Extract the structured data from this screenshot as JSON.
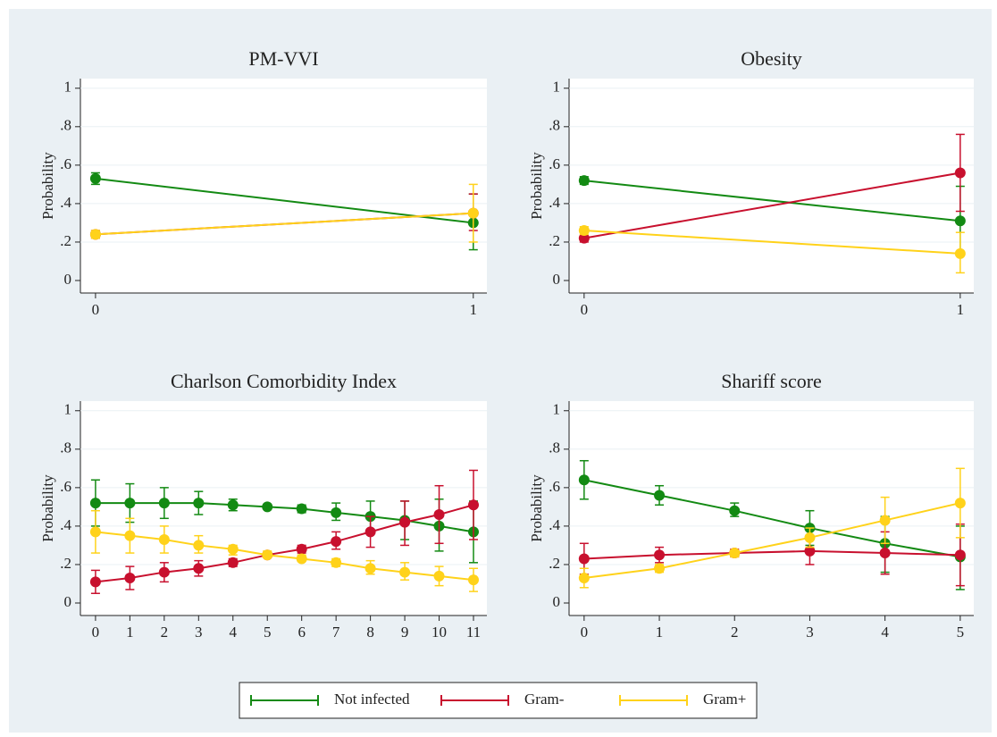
{
  "chart_data": [
    {
      "type": "line",
      "title": "PM-VVI",
      "ylabel": "Probability",
      "x": [
        0,
        1
      ],
      "xlim": [
        -0.04,
        1.036
      ],
      "xticks": [
        0,
        1
      ],
      "ylim": [
        -0.065,
        1.05
      ],
      "yticks": [
        0,
        {
          "value": 0.2,
          "label": ".2"
        },
        {
          "value": 0.4,
          "label": ".4"
        },
        {
          "value": 0.6,
          "label": ".6"
        },
        {
          "value": 0.8,
          "label": ".8"
        },
        1
      ],
      "series": [
        {
          "values": [
            0.53,
            0.3
          ],
          "lower": [
            0.5,
            0.16
          ],
          "upper": [
            0.56,
            0.45
          ]
        },
        {
          "values": [
            0.24,
            0.35
          ],
          "lower": [
            0.22,
            0.26
          ],
          "upper": [
            0.26,
            0.45
          ]
        },
        {
          "values": [
            0.24,
            0.35
          ],
          "lower": [
            0.22,
            0.2
          ],
          "upper": [
            0.26,
            0.5
          ]
        }
      ]
    },
    {
      "type": "line",
      "title": "Obesity",
      "ylabel": "Probability",
      "x": [
        0,
        1
      ],
      "xlim": [
        -0.04,
        1.036
      ],
      "xticks": [
        0,
        1
      ],
      "ylim": [
        -0.065,
        1.05
      ],
      "yticks": [
        0,
        {
          "value": 0.2,
          "label": ".2"
        },
        {
          "value": 0.4,
          "label": ".4"
        },
        {
          "value": 0.6,
          "label": ".6"
        },
        {
          "value": 0.8,
          "label": ".8"
        },
        1
      ],
      "series": [
        {
          "values": [
            0.52,
            0.31
          ],
          "lower": [
            0.5,
            0.13
          ],
          "upper": [
            0.54,
            0.49
          ]
        },
        {
          "values": [
            0.22,
            0.56
          ],
          "lower": [
            0.2,
            0.36
          ],
          "upper": [
            0.25,
            0.76
          ]
        },
        {
          "values": [
            0.26,
            0.14
          ],
          "lower": [
            0.24,
            0.04
          ],
          "upper": [
            0.28,
            0.25
          ]
        }
      ]
    },
    {
      "type": "line",
      "title": "Charlson Comorbidity Index",
      "ylabel": "Probability",
      "x": [
        0,
        1,
        2,
        3,
        4,
        5,
        6,
        7,
        8,
        9,
        10,
        11
      ],
      "xlim": [
        -0.44,
        11.39
      ],
      "xticks": [
        0,
        1,
        2,
        3,
        4,
        5,
        6,
        7,
        8,
        9,
        10,
        11
      ],
      "ylim": [
        -0.065,
        1.05
      ],
      "yticks": [
        0,
        {
          "value": 0.2,
          "label": ".2"
        },
        {
          "value": 0.4,
          "label": ".4"
        },
        {
          "value": 0.6,
          "label": ".6"
        },
        {
          "value": 0.8,
          "label": ".8"
        },
        1
      ],
      "series": [
        {
          "values": [
            0.52,
            0.52,
            0.52,
            0.52,
            0.51,
            0.5,
            0.49,
            0.47,
            0.45,
            0.43,
            0.4,
            0.37
          ],
          "lower": [
            0.4,
            0.42,
            0.44,
            0.46,
            0.48,
            0.49,
            0.47,
            0.43,
            0.38,
            0.33,
            0.27,
            0.21
          ],
          "upper": [
            0.64,
            0.62,
            0.6,
            0.58,
            0.54,
            0.51,
            0.51,
            0.52,
            0.53,
            0.53,
            0.54,
            0.53
          ]
        },
        {
          "values": [
            0.11,
            0.13,
            0.16,
            0.18,
            0.21,
            0.25,
            0.28,
            0.32,
            0.37,
            0.42,
            0.46,
            0.51
          ],
          "lower": [
            0.05,
            0.07,
            0.11,
            0.14,
            0.19,
            0.24,
            0.26,
            0.28,
            0.29,
            0.3,
            0.31,
            0.33
          ],
          "upper": [
            0.17,
            0.19,
            0.21,
            0.22,
            0.23,
            0.26,
            0.3,
            0.37,
            0.45,
            0.53,
            0.61,
            0.69
          ]
        },
        {
          "values": [
            0.37,
            0.35,
            0.33,
            0.3,
            0.28,
            0.25,
            0.23,
            0.21,
            0.18,
            0.16,
            0.14,
            0.12
          ],
          "lower": [
            0.26,
            0.26,
            0.26,
            0.26,
            0.25,
            0.24,
            0.22,
            0.19,
            0.15,
            0.12,
            0.09,
            0.06
          ],
          "upper": [
            0.48,
            0.44,
            0.4,
            0.35,
            0.3,
            0.27,
            0.25,
            0.23,
            0.22,
            0.21,
            0.19,
            0.18
          ]
        }
      ]
    },
    {
      "type": "line",
      "title": "Shariff score",
      "ylabel": "Probability",
      "x": [
        0,
        1,
        2,
        3,
        4,
        5
      ],
      "xlim": [
        -0.2,
        5.18
      ],
      "xticks": [
        0,
        1,
        2,
        3,
        4,
        5
      ],
      "ylim": [
        -0.065,
        1.05
      ],
      "yticks": [
        0,
        {
          "value": 0.2,
          "label": ".2"
        },
        {
          "value": 0.4,
          "label": ".4"
        },
        {
          "value": 0.6,
          "label": ".6"
        },
        {
          "value": 0.8,
          "label": ".8"
        },
        1
      ],
      "series": [
        {
          "values": [
            0.64,
            0.56,
            0.48,
            0.39,
            0.31,
            0.24
          ],
          "lower": [
            0.54,
            0.51,
            0.45,
            0.3,
            0.16,
            0.07
          ],
          "upper": [
            0.74,
            0.61,
            0.52,
            0.48,
            0.45,
            0.4
          ]
        },
        {
          "values": [
            0.23,
            0.25,
            0.26,
            0.27,
            0.26,
            0.25
          ],
          "lower": [
            0.15,
            0.21,
            0.24,
            0.2,
            0.15,
            0.09
          ],
          "upper": [
            0.31,
            0.29,
            0.28,
            0.34,
            0.37,
            0.41
          ]
        },
        {
          "values": [
            0.13,
            0.18,
            0.26,
            0.34,
            0.43,
            0.52
          ],
          "lower": [
            0.08,
            0.16,
            0.24,
            0.29,
            0.31,
            0.34
          ],
          "upper": [
            0.18,
            0.2,
            0.27,
            0.39,
            0.55,
            0.7
          ]
        }
      ]
    }
  ],
  "legend": {
    "names": [
      "Not infected",
      "Gram-",
      "Gram+"
    ],
    "colors": [
      "#138a13",
      "#c8102e",
      "#ffd21a"
    ]
  }
}
